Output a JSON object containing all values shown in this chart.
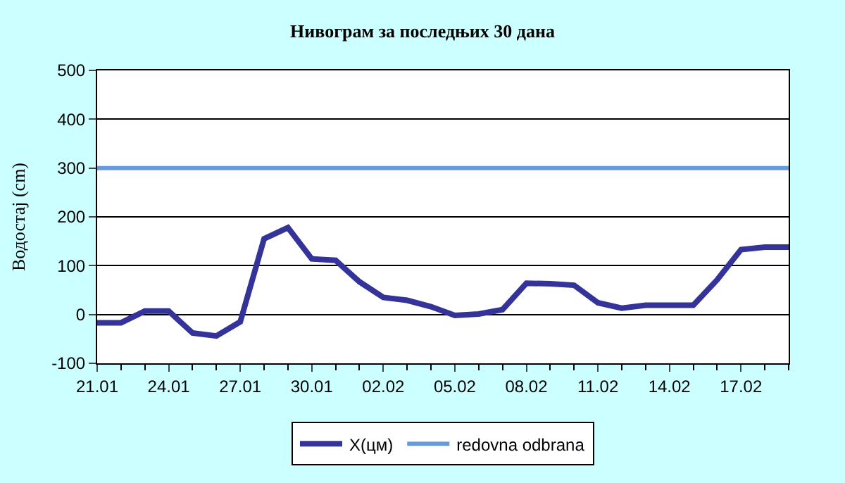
{
  "chart_data": {
    "type": "line",
    "title": "Нивограм за последњих 30 дана",
    "ylabel": "Водостај (cm)",
    "categories": [
      "21.01",
      null,
      null,
      "24.01",
      null,
      null,
      "27.01",
      null,
      null,
      "30.01",
      null,
      null,
      "02.02",
      null,
      null,
      "05.02",
      null,
      null,
      "08.02",
      null,
      null,
      "11.02",
      null,
      null,
      "14.02",
      null,
      null,
      "17.02",
      null,
      null
    ],
    "series": [
      {
        "name": "X(цм)",
        "color": "#333399",
        "values": [
          -17,
          -17,
          7,
          7,
          -38,
          -44,
          -15,
          155,
          178,
          114,
          111,
          67,
          35,
          29,
          16,
          -2,
          1,
          10,
          64,
          63,
          60,
          24,
          13,
          19,
          19,
          19,
          71,
          133,
          138,
          138
        ]
      }
    ],
    "ref_lines": [
      {
        "axis": "y",
        "value": 300,
        "label": "redovna odbrana",
        "color": "#6699dd"
      }
    ],
    "ylim": [
      -100,
      500
    ],
    "yticks": [
      -100,
      0,
      100,
      200,
      300,
      400,
      500
    ],
    "grid": "y",
    "legend": "bottom",
    "marker": "none",
    "line_style": "solid"
  }
}
